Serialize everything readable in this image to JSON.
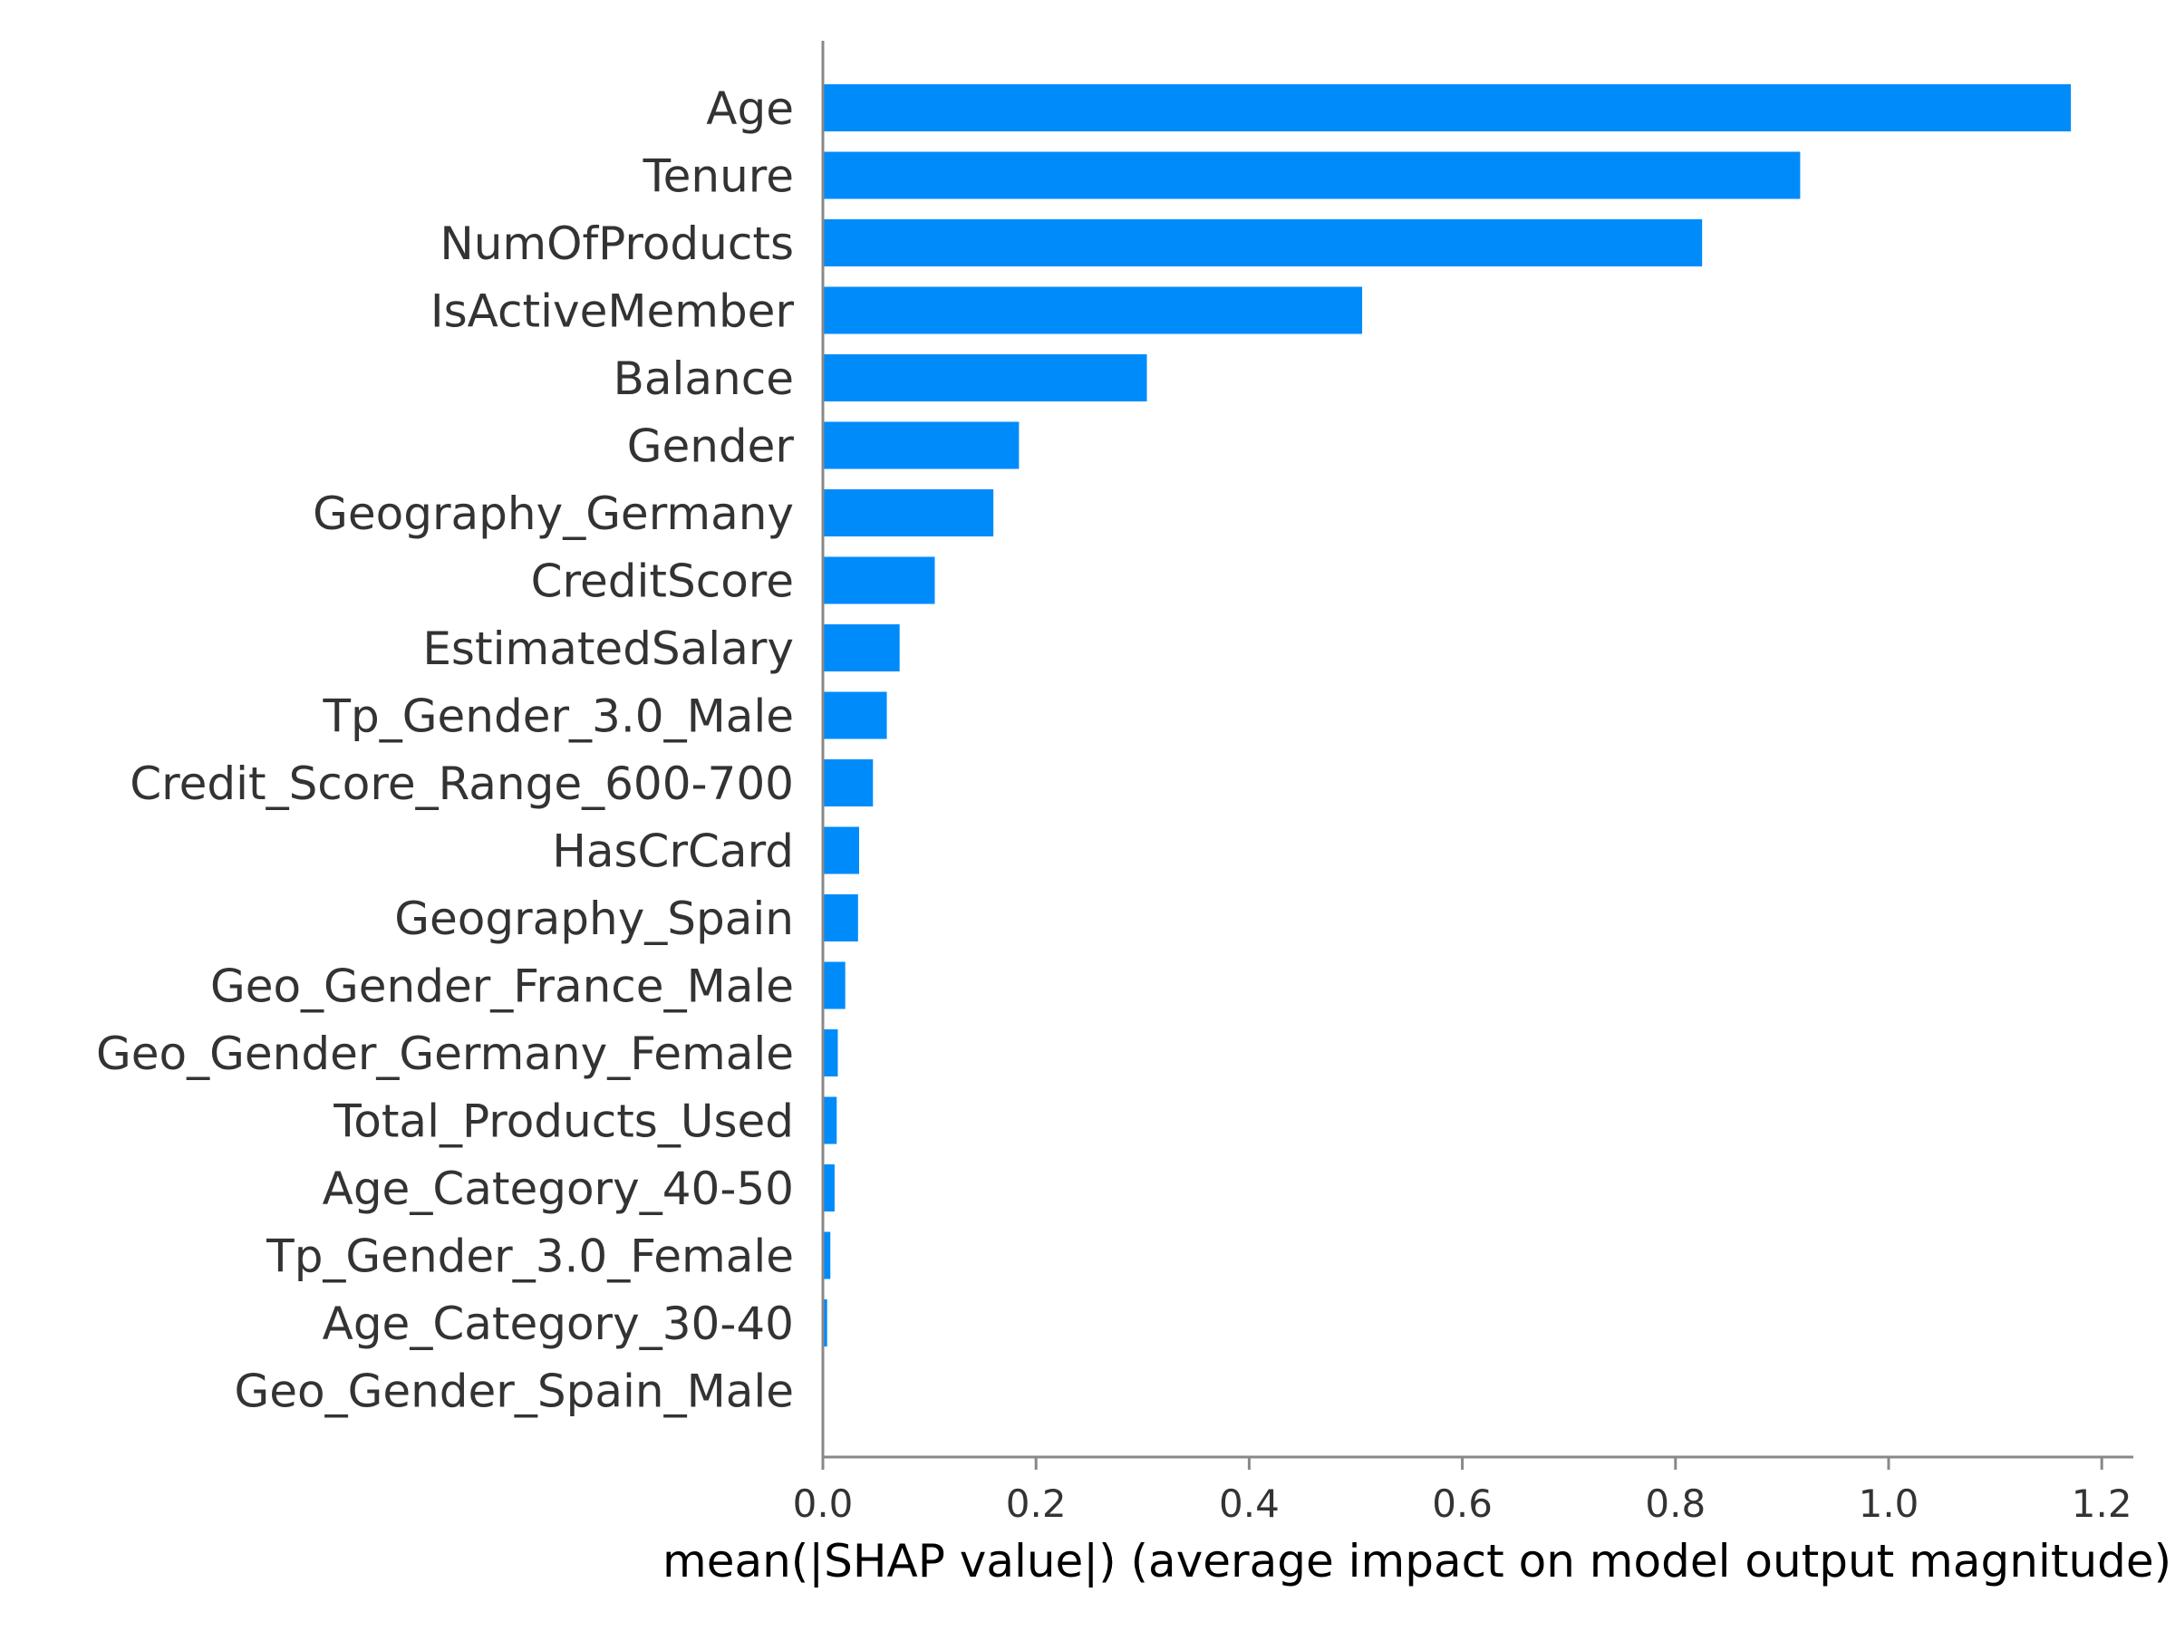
{
  "chart_data": {
    "type": "bar",
    "orientation": "horizontal",
    "categories": [
      "Age",
      "Tenure",
      "NumOfProducts",
      "IsActiveMember",
      "Balance",
      "Gender",
      "Geography_Germany",
      "CreditScore",
      "EstimatedSalary",
      "Tp_Gender_3.0_Male",
      "Credit_Score_Range_600-700",
      "HasCrCard",
      "Geography_Spain",
      "Geo_Gender_France_Male",
      "Geo_Gender_Germany_Female",
      "Total_Products_Used",
      "Age_Category_40-50",
      "Tp_Gender_3.0_Female",
      "Age_Category_30-40",
      "Geo_Gender_Spain_Male"
    ],
    "values": [
      1.171,
      0.917,
      0.825,
      0.506,
      0.304,
      0.184,
      0.16,
      0.105,
      0.072,
      0.06,
      0.047,
      0.034,
      0.033,
      0.021,
      0.014,
      0.013,
      0.011,
      0.007,
      0.004,
      0.001
    ],
    "xlabel": "mean(|SHAP value|) (average impact on model output magnitude)",
    "ylabel": "",
    "title": "",
    "xlim": [
      0,
      1.23
    ],
    "xticks": [
      "0.0",
      "0.2",
      "0.4",
      "0.6",
      "0.8",
      "1.0",
      "1.2"
    ],
    "xtick_values": [
      0,
      0.2,
      0.4,
      0.6,
      0.8,
      1.0,
      1.2
    ],
    "bar_color": "#008bfb",
    "axis_color": "#888888",
    "text_color": "#333333",
    "grid": false
  }
}
